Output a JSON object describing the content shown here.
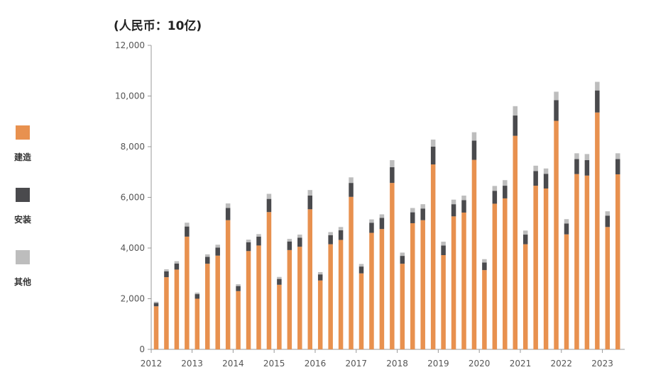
{
  "chart_data": {
    "type": "bar",
    "stacked": true,
    "unit_label": "(人民币：10亿)",
    "ylim": [
      0,
      12000
    ],
    "y_ticks": [
      "0",
      "2,000",
      "4,000",
      "6,000",
      "8,000",
      "10,000",
      "12,000"
    ],
    "x_tick_labels": [
      "2012",
      "2013",
      "2014",
      "2015",
      "2016",
      "2017",
      "2018",
      "2019",
      "2020",
      "2021",
      "2022",
      "2023"
    ],
    "periods_per_year": 4,
    "grid": false,
    "legend_position": "left",
    "colors": [
      "#E8914F",
      "#4A4A4D",
      "#BDBDBD"
    ],
    "series": [
      {
        "name": "建造",
        "values": [
          1700,
          2850,
          3150,
          4450,
          2000,
          3380,
          3700,
          5100,
          2300,
          3880,
          4100,
          5420,
          2550,
          3920,
          4050,
          5530,
          2720,
          4150,
          4320,
          6020,
          3000,
          4600,
          4750,
          6570,
          3380,
          4980,
          5100,
          7300,
          3720,
          5250,
          5400,
          7480,
          3130,
          5750,
          5960,
          8430,
          4150,
          6460,
          6350,
          9020,
          4540,
          6920,
          6860,
          9350,
          4830,
          6910
        ]
      },
      {
        "name": "安装",
        "values": [
          130,
          230,
          240,
          400,
          180,
          270,
          320,
          480,
          200,
          350,
          350,
          520,
          230,
          340,
          360,
          540,
          240,
          360,
          380,
          550,
          270,
          400,
          440,
          620,
          310,
          430,
          460,
          700,
          380,
          480,
          490,
          760,
          300,
          510,
          500,
          800,
          380,
          580,
          580,
          820,
          430,
          590,
          610,
          870,
          450,
          600
        ]
      },
      {
        "name": "其他",
        "values": [
          50,
          80,
          90,
          150,
          60,
          100,
          110,
          180,
          70,
          100,
          100,
          200,
          80,
          100,
          120,
          220,
          90,
          120,
          130,
          220,
          100,
          130,
          140,
          280,
          130,
          170,
          170,
          280,
          150,
          180,
          180,
          330,
          130,
          190,
          220,
          370,
          160,
          210,
          210,
          330,
          170,
          230,
          240,
          340,
          170,
          230
        ]
      }
    ]
  }
}
